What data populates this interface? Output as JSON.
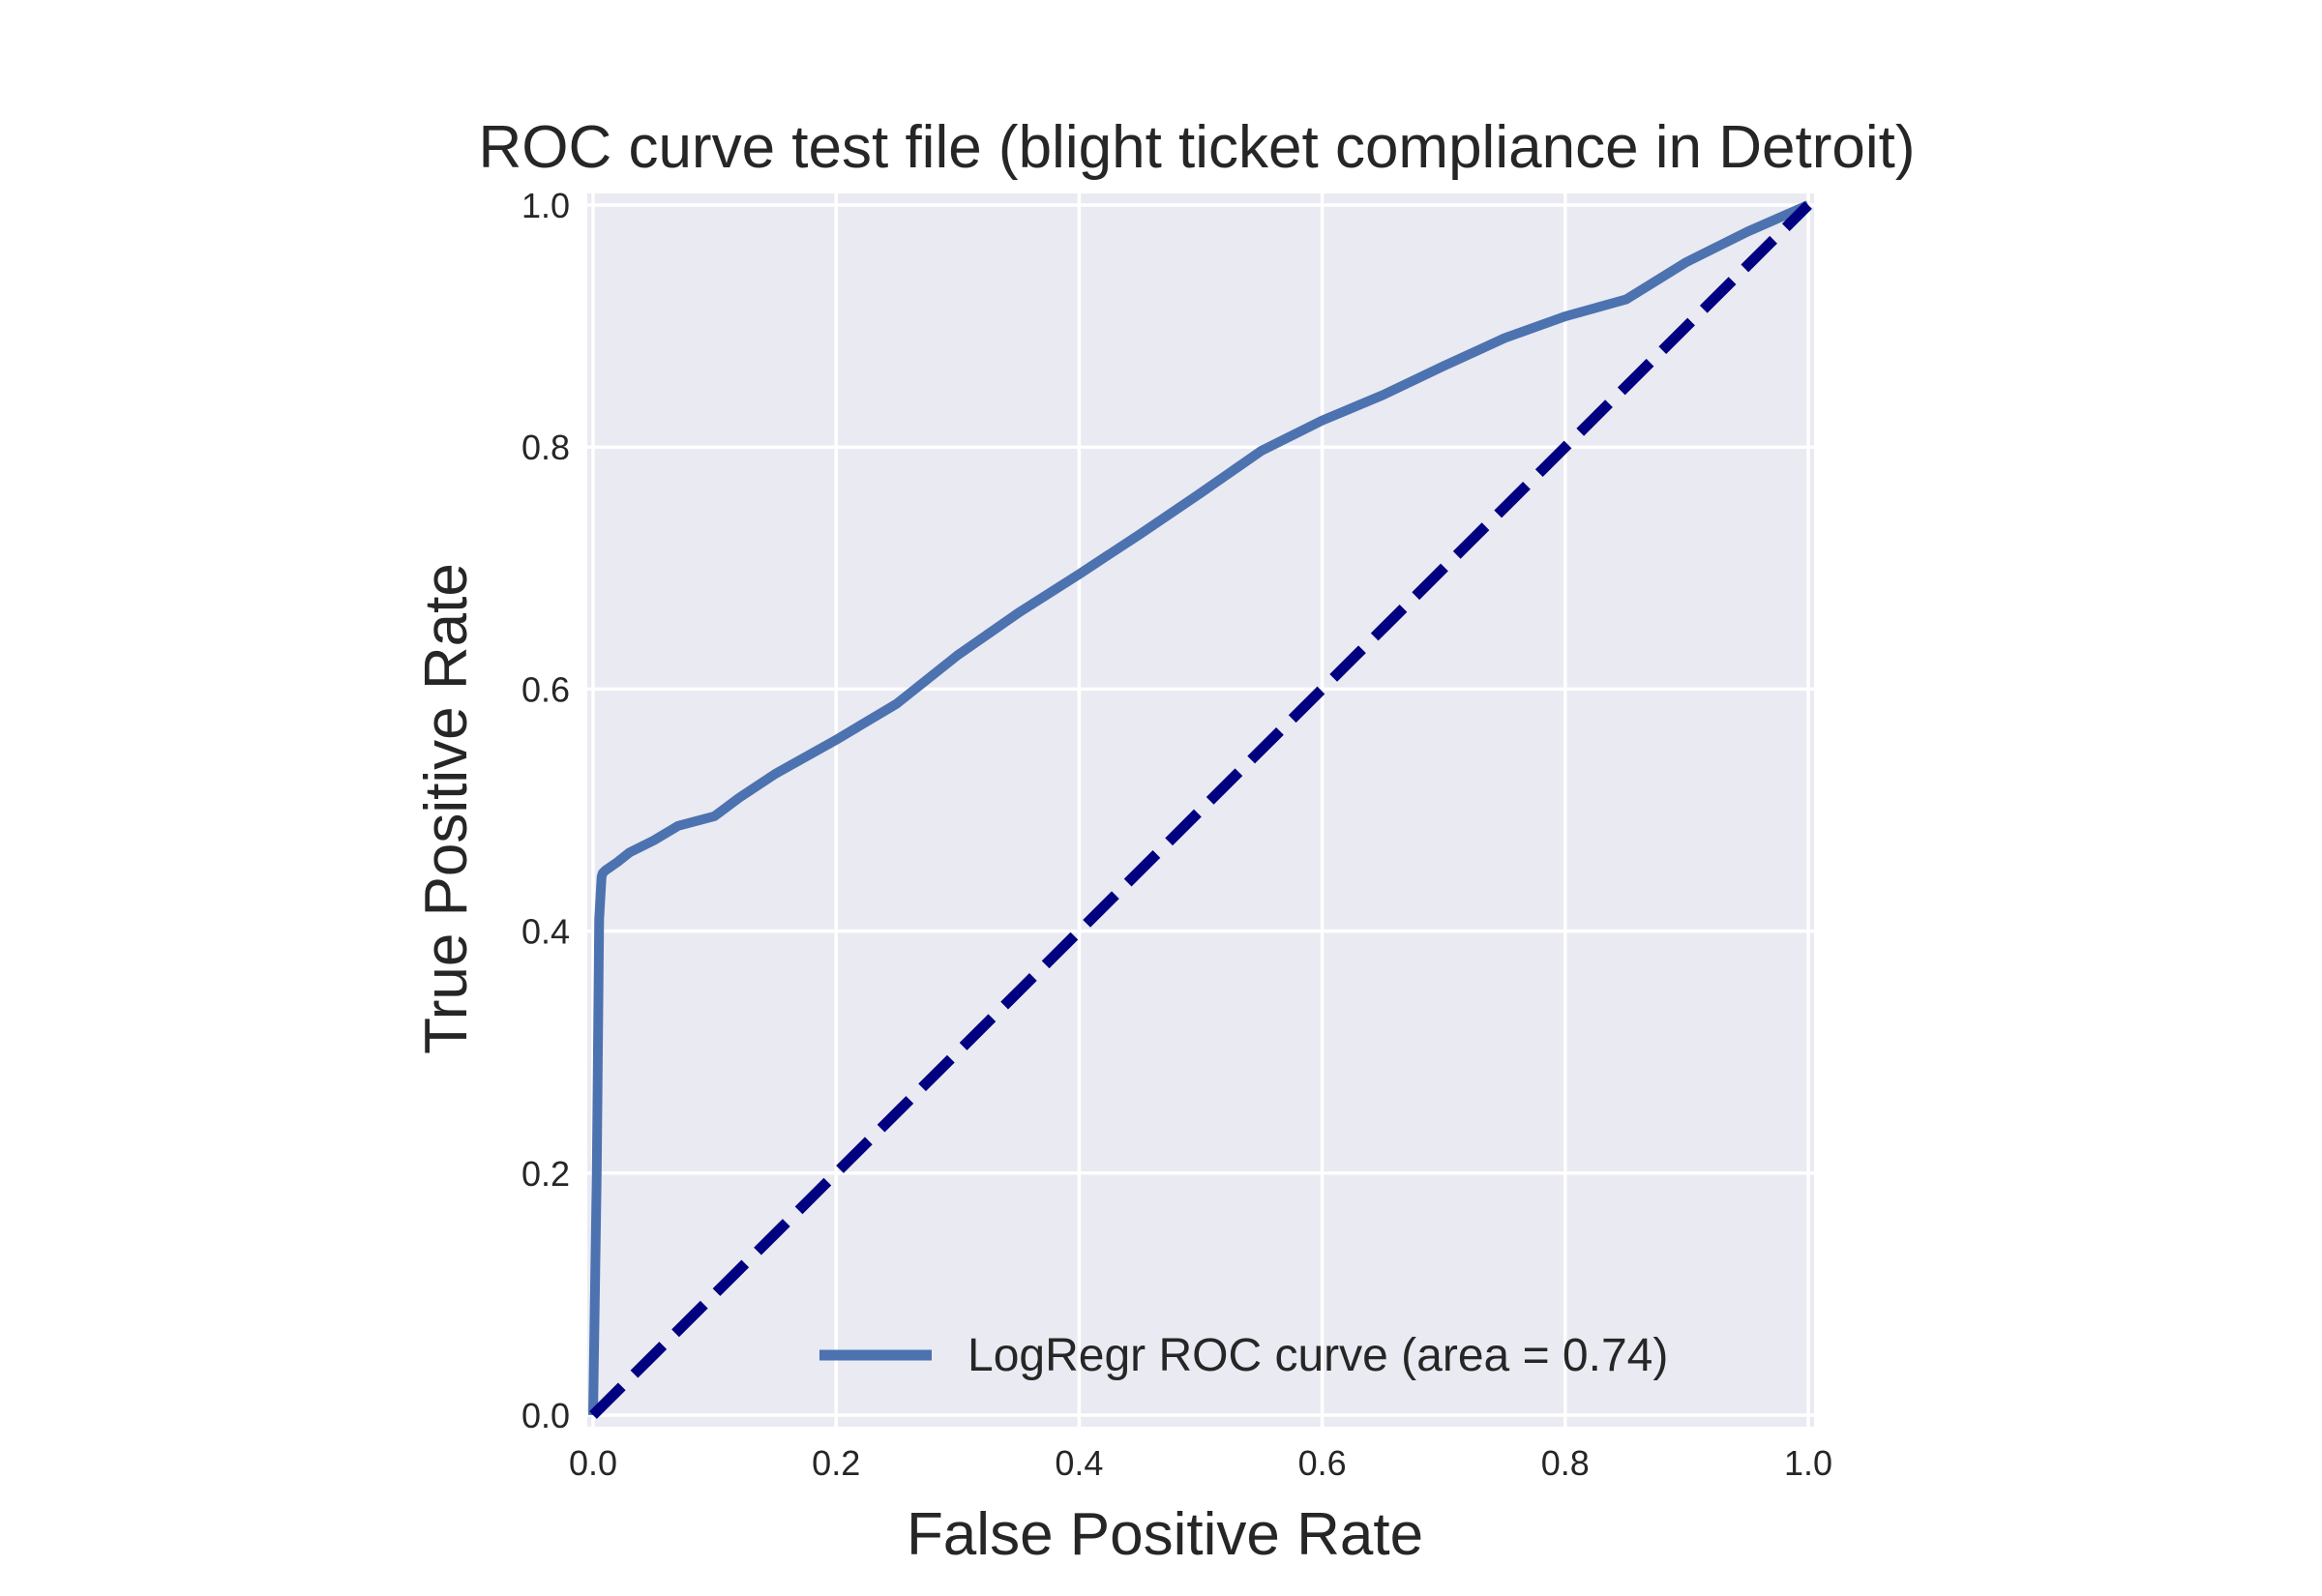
{
  "chart_data": {
    "type": "line",
    "title": "ROC curve test file (blight ticket compliance in Detroit)",
    "xlabel": "False Positive Rate",
    "ylabel": "True Positive Rate",
    "xlim": [
      0.0,
      1.0
    ],
    "ylim": [
      0.0,
      1.0
    ],
    "xticks": [
      "0.0",
      "0.2",
      "0.4",
      "0.6",
      "0.8",
      "1.0"
    ],
    "yticks": [
      "0.0",
      "0.2",
      "0.4",
      "0.6",
      "0.8",
      "1.0"
    ],
    "grid": true,
    "legend_position": "lower-right",
    "background_color": "#eaeaf2",
    "grid_color": "#ffffff",
    "series": [
      {
        "name": "LogRegr ROC curve (area = 0.74)",
        "color": "#4c72b0",
        "style": "solid",
        "x": [
          0.0,
          0.003,
          0.005,
          0.007,
          0.008,
          0.01,
          0.02,
          0.03,
          0.05,
          0.07,
          0.1,
          0.12,
          0.15,
          0.2,
          0.25,
          0.3,
          0.35,
          0.4,
          0.45,
          0.5,
          0.55,
          0.6,
          0.65,
          0.7,
          0.75,
          0.8,
          0.85,
          0.9,
          0.95,
          1.0
        ],
        "y": [
          0.0,
          0.2,
          0.41,
          0.445,
          0.448,
          0.45,
          0.457,
          0.465,
          0.475,
          0.487,
          0.495,
          0.51,
          0.53,
          0.558,
          0.588,
          0.628,
          0.663,
          0.695,
          0.728,
          0.762,
          0.797,
          0.822,
          0.843,
          0.867,
          0.89,
          0.908,
          0.922,
          0.953,
          0.978,
          1.0
        ]
      },
      {
        "name": "",
        "color": "#000080",
        "style": "dashed",
        "x": [
          0.0,
          1.0
        ],
        "y": [
          0.0,
          1.0
        ]
      }
    ]
  }
}
